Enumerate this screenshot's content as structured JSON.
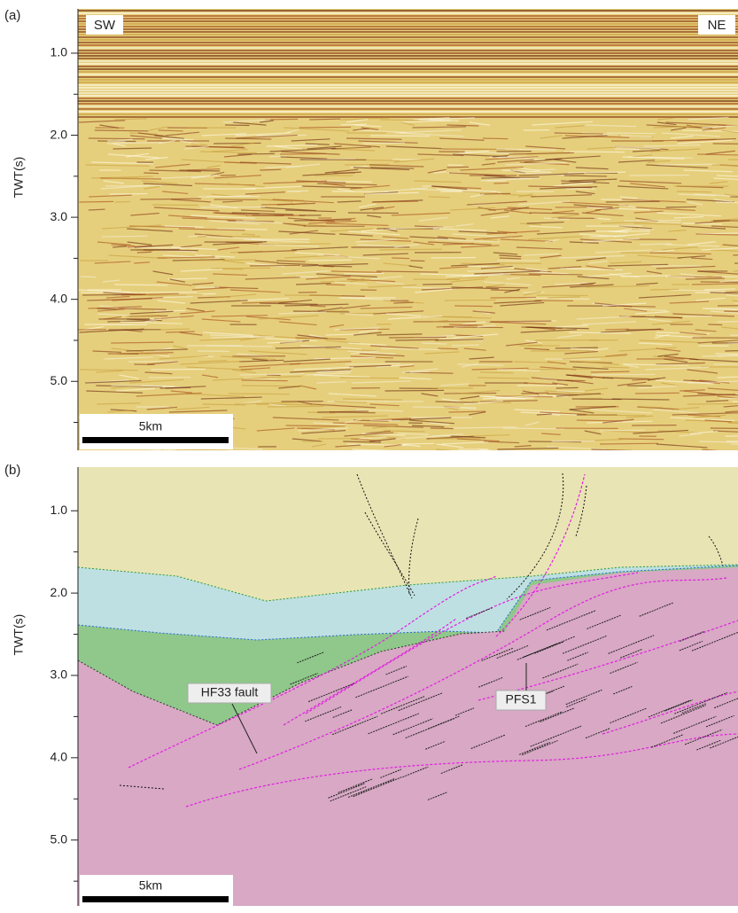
{
  "panels": [
    {
      "label": "(a)",
      "y_label": "TWT(s)",
      "ylim": [
        0.46,
        5.84
      ],
      "yticks": [
        {
          "value": 1,
          "label": "1.0"
        },
        {
          "value": 2,
          "label": "2.0"
        },
        {
          "value": 3,
          "label": "3.0"
        },
        {
          "value": 4,
          "label": "4.0"
        },
        {
          "value": 5,
          "label": "5.0"
        }
      ],
      "minor_yticks": [
        1.5,
        2.5,
        3.5,
        4.5,
        5.5
      ],
      "left_label": "SW",
      "right_label": "NE",
      "scale_bar": "5km"
    },
    {
      "label": "(b)",
      "y_label": "TWT(s)",
      "ylim": [
        0.47,
        5.8
      ],
      "yticks": [
        {
          "value": 1,
          "label": "1.0"
        },
        {
          "value": 2,
          "label": "2.0"
        },
        {
          "value": 3,
          "label": "3.0"
        },
        {
          "value": 4,
          "label": "4.0"
        },
        {
          "value": 5,
          "label": "5.0"
        }
      ],
      "minor_yticks": [
        1.5,
        2.5,
        3.5,
        4.5,
        5.5
      ],
      "annotations": [
        "HF33 fault",
        "PFS1"
      ],
      "scale_bar": "5km"
    }
  ]
}
